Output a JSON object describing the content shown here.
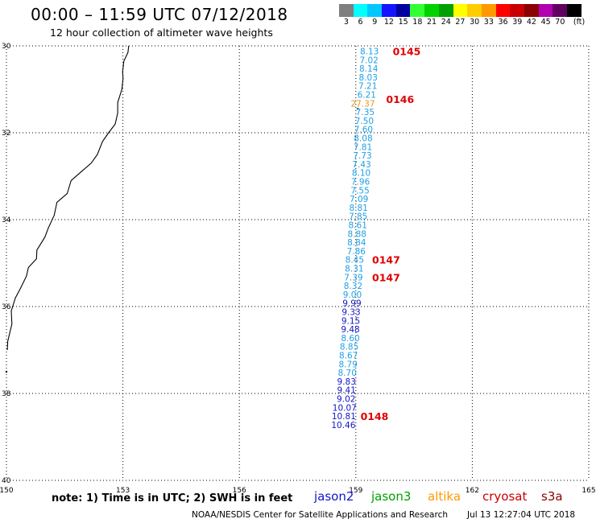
{
  "header": {
    "title": "00:00 – 11:59 UTC 07/12/2018",
    "subtitle": "12 hour collection of altimeter wave heights"
  },
  "color_scale": {
    "colors": [
      "#7f7f7f",
      "#00ffff",
      "#00c8ff",
      "#1414ff",
      "#0000a0",
      "#33ff33",
      "#00d200",
      "#00a000",
      "#ffff00",
      "#ffcc00",
      "#ff9900",
      "#ff0000",
      "#c80000",
      "#8b0000",
      "#b000b0",
      "#600060",
      "#000000"
    ],
    "labels": [
      "3",
      "6",
      "9",
      "12",
      "15",
      "18",
      "21",
      "24",
      "27",
      "30",
      "33",
      "36",
      "39",
      "42",
      "45",
      "70",
      "(ft)"
    ]
  },
  "map": {
    "lon_ticks": [
      "150",
      "153",
      "156",
      "159",
      "162",
      "165"
    ],
    "lat_ticks": [
      "30",
      "32",
      "34",
      "36",
      "38",
      "40"
    ],
    "lon_range": [
      150,
      165
    ],
    "lat_range": [
      30,
      40
    ],
    "wave_readings": [
      {
        "v": "8.13",
        "c": "#1ea0e6",
        "lon": 159.35,
        "lat": 30.12
      },
      {
        "v": "7.02",
        "c": "#1ea0e6",
        "lon": 159.34,
        "lat": 30.32
      },
      {
        "v": "8.14",
        "c": "#1ea0e6",
        "lon": 159.33,
        "lat": 30.52
      },
      {
        "v": "8.03",
        "c": "#1ea0e6",
        "lon": 159.32,
        "lat": 30.72
      },
      {
        "v": "7.21",
        "c": "#1ea0e6",
        "lon": 159.31,
        "lat": 30.92
      },
      {
        "v": "6.21",
        "c": "#1ea0e6",
        "lon": 159.28,
        "lat": 31.12
      },
      {
        "v": "27.37",
        "c": "#e8961e",
        "lon": 159.18,
        "lat": 31.32
      },
      {
        "v": "7.35",
        "c": "#1ea0e6",
        "lon": 159.24,
        "lat": 31.52
      },
      {
        "v": "7.50",
        "c": "#1ea0e6",
        "lon": 159.22,
        "lat": 31.72
      },
      {
        "v": "7.60",
        "c": "#1ea0e6",
        "lon": 159.2,
        "lat": 31.92
      },
      {
        "v": "8.08",
        "c": "#1ea0e6",
        "lon": 159.19,
        "lat": 32.12
      },
      {
        "v": "7.81",
        "c": "#1ea0e6",
        "lon": 159.18,
        "lat": 32.32
      },
      {
        "v": "7.73",
        "c": "#1ea0e6",
        "lon": 159.17,
        "lat": 32.52
      },
      {
        "v": "7.43",
        "c": "#1ea0e6",
        "lon": 159.15,
        "lat": 32.72
      },
      {
        "v": "8.10",
        "c": "#1ea0e6",
        "lon": 159.14,
        "lat": 32.92
      },
      {
        "v": "7.96",
        "c": "#1ea0e6",
        "lon": 159.12,
        "lat": 33.12
      },
      {
        "v": "7.55",
        "c": "#1ea0e6",
        "lon": 159.11,
        "lat": 33.32
      },
      {
        "v": "7.09",
        "c": "#1ea0e6",
        "lon": 159.08,
        "lat": 33.52
      },
      {
        "v": "8.81",
        "c": "#1ea0e6",
        "lon": 159.07,
        "lat": 33.72
      },
      {
        "v": "7.85",
        "c": "#1ea0e6",
        "lon": 159.06,
        "lat": 33.92
      },
      {
        "v": "8.61",
        "c": "#1ea0e6",
        "lon": 159.05,
        "lat": 34.12
      },
      {
        "v": "8.88",
        "c": "#1ea0e6",
        "lon": 159.03,
        "lat": 34.32
      },
      {
        "v": "8.84",
        "c": "#1ea0e6",
        "lon": 159.02,
        "lat": 34.52
      },
      {
        "v": "7.86",
        "c": "#1ea0e6",
        "lon": 159.01,
        "lat": 34.72
      },
      {
        "v": "8.45",
        "c": "#1ea0e6",
        "lon": 158.97,
        "lat": 34.92
      },
      {
        "v": "8.31",
        "c": "#1ea0e6",
        "lon": 158.96,
        "lat": 35.12
      },
      {
        "v": "7.39",
        "c": "#1ea0e6",
        "lon": 158.94,
        "lat": 35.32
      },
      {
        "v": "8.32",
        "c": "#1ea0e6",
        "lon": 158.93,
        "lat": 35.52
      },
      {
        "v": "9.00",
        "c": "#1ea0e6",
        "lon": 158.91,
        "lat": 35.72
      },
      {
        "v": "9.99",
        "c": "#1414c8",
        "lon": 158.9,
        "lat": 35.92
      },
      {
        "v": "9.33",
        "c": "#1414c8",
        "lon": 158.88,
        "lat": 36.12
      },
      {
        "v": "9.15",
        "c": "#1414c8",
        "lon": 158.87,
        "lat": 36.32
      },
      {
        "v": "9.48",
        "c": "#1414c8",
        "lon": 158.86,
        "lat": 36.52
      },
      {
        "v": "8.60",
        "c": "#1ea0e6",
        "lon": 158.86,
        "lat": 36.72
      },
      {
        "v": "8.85",
        "c": "#1ea0e6",
        "lon": 158.83,
        "lat": 36.92
      },
      {
        "v": "8.67",
        "c": "#1ea0e6",
        "lon": 158.81,
        "lat": 37.12
      },
      {
        "v": "8.79",
        "c": "#1ea0e6",
        "lon": 158.8,
        "lat": 37.32
      },
      {
        "v": "8.70",
        "c": "#1ea0e6",
        "lon": 158.78,
        "lat": 37.52
      },
      {
        "v": "9.83",
        "c": "#1414c8",
        "lon": 158.76,
        "lat": 37.72
      },
      {
        "v": "9.41",
        "c": "#1414c8",
        "lon": 158.76,
        "lat": 37.92
      },
      {
        "v": "9.02",
        "c": "#1414c8",
        "lon": 158.75,
        "lat": 38.12
      },
      {
        "v": "10.07",
        "c": "#1414c8",
        "lon": 158.71,
        "lat": 38.32
      },
      {
        "v": "10.81",
        "c": "#1414c8",
        "lon": 158.69,
        "lat": 38.52
      },
      {
        "v": "10.46",
        "c": "#1414c8",
        "lon": 158.68,
        "lat": 38.72
      }
    ],
    "time_marks": [
      {
        "t": "0145",
        "lon": 159.95,
        "lat": 30.12
      },
      {
        "t": "0146",
        "lon": 159.78,
        "lat": 31.22
      },
      {
        "t": "0147",
        "lon": 159.42,
        "lat": 34.92
      },
      {
        "t": "0147",
        "lon": 159.42,
        "lat": 35.32
      },
      {
        "t": "0148",
        "lon": 159.12,
        "lat": 38.52
      }
    ],
    "coastline": [
      [
        153.15,
        30.0
      ],
      [
        153.1,
        30.15
      ],
      [
        153.05,
        30.35
      ],
      [
        152.95,
        30.6
      ],
      [
        153.02,
        30.75
      ],
      [
        152.95,
        31.0
      ],
      [
        152.9,
        31.3
      ],
      [
        152.85,
        31.55
      ],
      [
        152.8,
        31.8
      ],
      [
        152.6,
        32.0
      ],
      [
        152.5,
        32.2
      ],
      [
        152.3,
        32.5
      ],
      [
        152.2,
        32.7
      ],
      [
        151.9,
        32.9
      ],
      [
        151.7,
        33.1
      ],
      [
        151.55,
        33.4
      ],
      [
        151.3,
        33.6
      ],
      [
        151.2,
        33.9
      ],
      [
        151.1,
        34.2
      ],
      [
        150.95,
        34.4
      ],
      [
        150.8,
        34.7
      ],
      [
        150.75,
        34.9
      ],
      [
        150.6,
        35.1
      ],
      [
        150.5,
        35.3
      ],
      [
        150.35,
        35.6
      ],
      [
        150.2,
        35.8
      ],
      [
        150.15,
        36.1
      ],
      [
        150.1,
        36.4
      ],
      [
        150.05,
        36.8
      ],
      [
        150.0,
        37.0
      ]
    ],
    "islands": [
      {
        "lon": 159.05,
        "lat": 31.45
      },
      {
        "lon": 150.0,
        "lat": 37.5
      }
    ]
  },
  "footer": {
    "note": "note: 1) Time is in UTC; 2) SWH is in feet",
    "credit": "NOAA/NESDIS Center for Satellite Applications and Research",
    "timestamp": "Jul 13 12:27:04 UTC 2018",
    "satellites": [
      {
        "name": "jason2",
        "color": "#1414c8"
      },
      {
        "name": "jason3",
        "color": "#00a000"
      },
      {
        "name": "altika",
        "color": "#ff9900"
      },
      {
        "name": "cryosat",
        "color": "#c80000"
      },
      {
        "name": "s3a",
        "color": "#8b0000"
      }
    ]
  }
}
